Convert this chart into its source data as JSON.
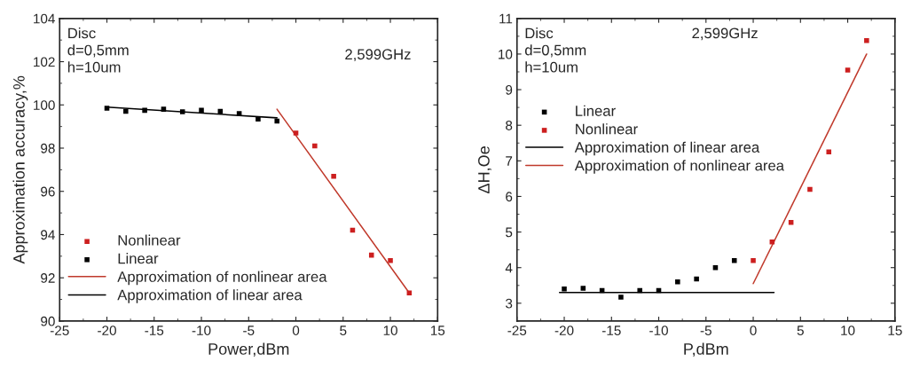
{
  "chart_data": [
    {
      "type": "scatter",
      "xlabel": "Power,dBm",
      "ylabel": "Approximation accuracy,%",
      "xlim": [
        -25,
        15
      ],
      "xticks": [
        -25,
        -20,
        -15,
        -10,
        -5,
        0,
        5,
        10,
        15
      ],
      "ylim": [
        90,
        104
      ],
      "yticks": [
        90,
        92,
        94,
        96,
        98,
        100,
        102,
        104
      ],
      "grid": false,
      "legend": "bottom left",
      "marker": "square",
      "annotations": [
        "Disc\nd=0,5mm\nh=10um",
        "2,599GHz"
      ],
      "series": [
        {
          "name": "Nonlinear",
          "color": "#cc1f1f",
          "x": [
            0,
            2,
            4,
            6,
            8,
            10,
            12
          ],
          "values": [
            98.7,
            98.1,
            96.7,
            94.2,
            93.05,
            92.8,
            91.3
          ]
        },
        {
          "name": "Linear",
          "color": "#000000",
          "x": [
            -20,
            -18,
            -16,
            -14,
            -12,
            -10,
            -8,
            -6,
            -4,
            -2
          ],
          "values": [
            99.85,
            99.7,
            99.75,
            99.8,
            99.68,
            99.75,
            99.7,
            99.6,
            99.35,
            99.25
          ]
        },
        {
          "name": "Approximation of nonlinear area",
          "type": "line",
          "marker": "none",
          "color": "#c0392b",
          "x": [
            -2,
            12
          ],
          "values": [
            99.8,
            91.3
          ]
        },
        {
          "name": "Approximation of linear area",
          "type": "line",
          "marker": "none",
          "color": "#000000",
          "x": [
            -20,
            -2
          ],
          "values": [
            99.9,
            99.4
          ]
        }
      ]
    },
    {
      "type": "scatter",
      "xlabel": "P,dBm",
      "ylabel": "ΔH,Oe",
      "xlim": [
        -25,
        15
      ],
      "xticks": [
        -25,
        -20,
        -15,
        -10,
        -5,
        0,
        5,
        10,
        15
      ],
      "ylim": [
        2.5,
        11
      ],
      "yticks": [
        3,
        4,
        5,
        6,
        7,
        8,
        9,
        10,
        11
      ],
      "grid": false,
      "legend": "center left",
      "marker": "square",
      "annotations": [
        "Disc\nd=0,5mm\nh=10um",
        "2,599GHz"
      ],
      "series": [
        {
          "name": "Linear",
          "color": "#000000",
          "x": [
            -20,
            -18,
            -16,
            -14,
            -12,
            -10,
            -8,
            -6,
            -4,
            -2
          ],
          "values": [
            3.4,
            3.42,
            3.36,
            3.17,
            3.36,
            3.36,
            3.6,
            3.68,
            4.0,
            4.2
          ]
        },
        {
          "name": "Nonlinear",
          "color": "#cc1f1f",
          "x": [
            0,
            2,
            4,
            6,
            8,
            10,
            12
          ],
          "values": [
            4.2,
            4.72,
            5.27,
            6.2,
            7.25,
            9.55,
            10.38
          ]
        },
        {
          "name": "Approximation of linear area",
          "type": "line",
          "marker": "none",
          "color": "#000000",
          "x": [
            -20.5,
            2.2
          ],
          "values": [
            3.3,
            3.3
          ]
        },
        {
          "name": "Approximation of nonlinear area",
          "type": "line",
          "marker": "none",
          "color": "#c0392b",
          "x": [
            0,
            12
          ],
          "values": [
            3.55,
            10.0
          ]
        }
      ]
    }
  ]
}
